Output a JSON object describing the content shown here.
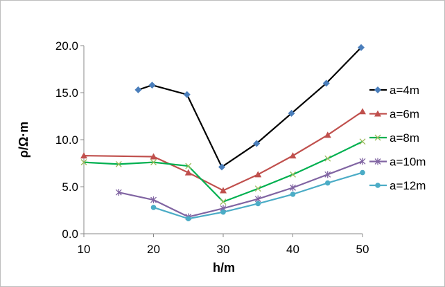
{
  "chart_data": {
    "type": "line",
    "title": "",
    "xlabel": "h/m",
    "ylabel": "ρ/Ω·m",
    "xlim": [
      10,
      50
    ],
    "ylim": [
      0,
      20
    ],
    "xticks": [
      10,
      20,
      30,
      40,
      50
    ],
    "yticks": [
      "0.0",
      "5.0",
      "10.0",
      "15.0",
      "20.0"
    ],
    "grid": false,
    "legend_position": "right",
    "series": [
      {
        "name": "a=4m",
        "color": "#000000",
        "marker_color": "#4a7ebb",
        "marker": "diamond",
        "x": [
          17.8,
          19.8,
          24.8,
          29.8,
          34.8,
          39.8,
          44.8,
          49.8
        ],
        "y": [
          15.3,
          15.8,
          14.8,
          7.1,
          9.6,
          12.8,
          16.0,
          19.8
        ]
      },
      {
        "name": "a=6m",
        "color": "#c0504d",
        "marker_color": "#c0504d",
        "marker": "triangle",
        "x": [
          10,
          20,
          25,
          30,
          35,
          40,
          45,
          50
        ],
        "y": [
          8.3,
          8.2,
          6.5,
          4.6,
          6.3,
          8.3,
          10.5,
          13.0
        ]
      },
      {
        "name": "a=8m",
        "color": "#00b050",
        "marker_color": "#9bbb59",
        "marker": "x",
        "x": [
          10,
          15,
          20,
          25,
          30,
          35,
          40,
          45,
          50
        ],
        "y": [
          7.6,
          7.4,
          7.6,
          7.2,
          3.4,
          4.8,
          6.3,
          8.0,
          9.8
        ]
      },
      {
        "name": "a=10m",
        "color": "#8064a2",
        "marker_color": "#8064a2",
        "marker": "star",
        "x": [
          15,
          20,
          25,
          30,
          35,
          40,
          45,
          50
        ],
        "y": [
          4.4,
          3.6,
          1.8,
          2.7,
          3.7,
          4.9,
          6.3,
          7.7
        ]
      },
      {
        "name": "a=12m",
        "color": "#4bacc6",
        "marker_color": "#4bacc6",
        "marker": "circle",
        "x": [
          20,
          25,
          30,
          35,
          40,
          45,
          50
        ],
        "y": [
          2.8,
          1.6,
          2.3,
          3.2,
          4.2,
          5.4,
          6.5
        ]
      }
    ]
  }
}
